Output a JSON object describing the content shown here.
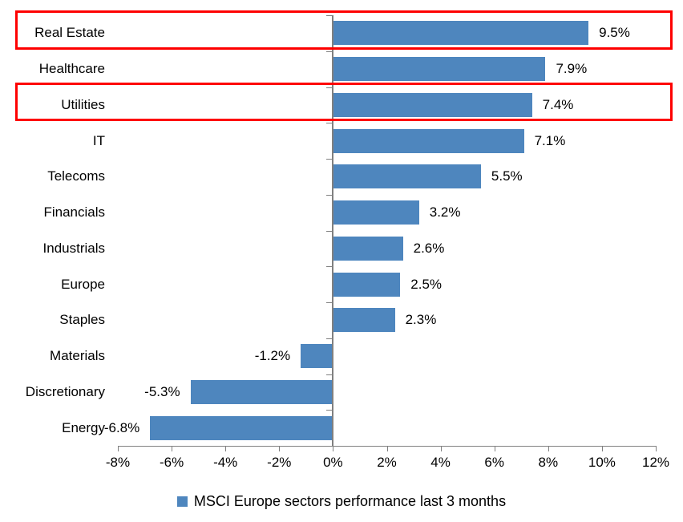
{
  "chart_data": {
    "type": "bar",
    "orientation": "horizontal",
    "title": "",
    "xlabel": "",
    "ylabel": "",
    "categories": [
      "Real Estate",
      "Healthcare",
      "Utilities",
      "IT",
      "Telecoms",
      "Financials",
      "Industrials",
      "Europe",
      "Staples",
      "Materials",
      "Discretionary",
      "Energy"
    ],
    "values": [
      9.5,
      7.9,
      7.4,
      7.1,
      5.5,
      3.2,
      2.6,
      2.5,
      2.3,
      -1.2,
      -5.3,
      -6.8
    ],
    "value_labels": [
      "9.5%",
      "7.9%",
      "7.4%",
      "7.1%",
      "5.5%",
      "3.2%",
      "2.6%",
      "2.5%",
      "2.3%",
      "-1.2%",
      "-5.3%",
      "-6.8%"
    ],
    "xlim": [
      -8,
      12
    ],
    "x_tick_step": 2,
    "x_tick_labels": [
      "-8%",
      "-6%",
      "-4%",
      "-2%",
      "0%",
      "2%",
      "4%",
      "6%",
      "8%",
      "10%",
      "12%"
    ],
    "grid": false,
    "legend": "MSCI Europe sectors performance last 3 months",
    "legend_position": "bottom",
    "bar_color": "#4E86BE",
    "axis_color": "#808080",
    "text_color": "#000000",
    "highlight_color": "#FE0000",
    "highlighted_categories": [
      "Real Estate",
      "Utilities"
    ]
  }
}
